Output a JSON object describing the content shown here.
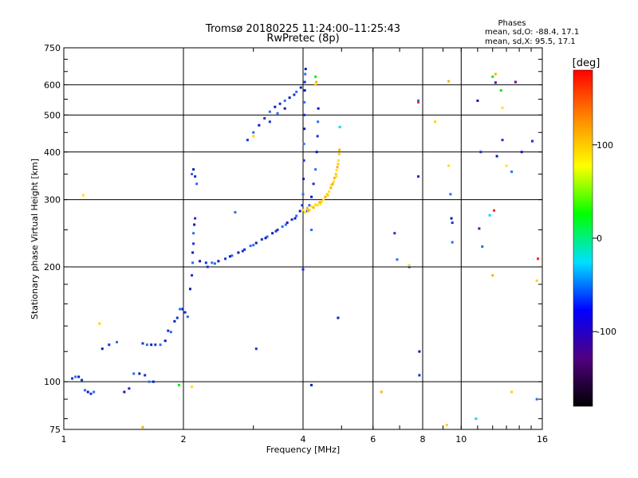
{
  "chart_data": {
    "type": "scatter",
    "title": "Tromsø 20180225 11:24:00–11:25:43",
    "subtitle": "RwPretec (8p)",
    "xlabel": "Frequency [MHz]",
    "ylabel": "Stationary phase Virtual Height [km]",
    "x_scale": "log",
    "y_scale": "log",
    "xlim": [
      1,
      16
    ],
    "ylim": [
      75,
      750
    ],
    "x_ticks": [
      1,
      2,
      4,
      6,
      8,
      10,
      16
    ],
    "x_tick_labels": [
      "1",
      "2",
      "4",
      "6",
      "8",
      "10",
      "16"
    ],
    "y_ticks": [
      75,
      100,
      200,
      300,
      400,
      500,
      600,
      750
    ],
    "y_tick_labels": [
      "75",
      "100",
      "200",
      "300",
      "400",
      "500",
      "600",
      "750"
    ],
    "grid": true,
    "phases_box": {
      "heading": "Phases",
      "line_o": "mean, sd,O: -88.4, 17.1",
      "line_x": "mean, sd,X:  95.5, 17.1"
    },
    "colorbar": {
      "label": "[deg]",
      "range": [
        -180,
        180
      ],
      "ticks": [
        100,
        0,
        -100
      ],
      "tick_labels": [
        "100",
        "0",
        "-100"
      ],
      "colors": [
        "#ff0000",
        "#ff8800",
        "#ffff00",
        "#00ff00",
        "#00e0ff",
        "#0000ff",
        "#500080",
        "#000000"
      ]
    },
    "series": [
      {
        "colors": [
          "#1a2fd0",
          "#2a6cf0",
          "#0a1ab8"
        ],
        "points": [
          [
            1.05,
            102
          ],
          [
            1.07,
            103
          ],
          [
            1.09,
            103
          ],
          [
            1.11,
            101
          ],
          [
            1.13,
            95
          ],
          [
            1.15,
            94
          ],
          [
            1.17,
            93
          ],
          [
            1.19,
            94
          ],
          [
            1.25,
            122
          ],
          [
            1.3,
            125
          ],
          [
            1.36,
            127
          ],
          [
            1.42,
            94
          ],
          [
            1.46,
            96
          ],
          [
            1.5,
            105
          ],
          [
            1.55,
            105
          ],
          [
            1.6,
            104
          ],
          [
            1.64,
            100
          ],
          [
            1.68,
            100
          ],
          [
            1.58,
            126
          ],
          [
            1.62,
            125
          ],
          [
            1.66,
            125
          ],
          [
            1.7,
            125
          ],
          [
            1.75,
            125
          ],
          [
            1.8,
            128
          ],
          [
            1.83,
            136
          ],
          [
            1.86,
            135
          ],
          [
            1.9,
            144
          ],
          [
            1.93,
            147
          ],
          [
            1.96,
            155
          ],
          [
            1.99,
            155
          ],
          [
            2.02,
            152
          ],
          [
            2.05,
            148
          ],
          [
            2.08,
            175
          ],
          [
            2.1,
            190
          ],
          [
            2.11,
            205
          ],
          [
            2.11,
            218
          ],
          [
            2.12,
            230
          ],
          [
            2.12,
            245
          ],
          [
            2.13,
            258
          ],
          [
            2.14,
            268
          ],
          [
            2.1,
            350
          ],
          [
            2.12,
            360
          ],
          [
            2.14,
            345
          ],
          [
            2.16,
            330
          ],
          [
            2.2,
            207
          ],
          [
            2.28,
            205
          ],
          [
            2.36,
            205
          ],
          [
            2.45,
            207
          ],
          [
            2.55,
            210
          ],
          [
            2.65,
            214
          ],
          [
            2.75,
            218
          ],
          [
            2.85,
            222
          ],
          [
            2.95,
            227
          ],
          [
            3.05,
            231
          ],
          [
            3.15,
            236
          ],
          [
            3.25,
            240
          ],
          [
            3.35,
            245
          ],
          [
            3.45,
            250
          ],
          [
            3.55,
            255
          ],
          [
            3.65,
            261
          ],
          [
            3.75,
            266
          ],
          [
            3.85,
            272
          ],
          [
            3.93,
            280
          ],
          [
            3.98,
            290
          ],
          [
            4.0,
            310
          ],
          [
            4.01,
            340
          ],
          [
            4.02,
            380
          ],
          [
            4.02,
            420
          ],
          [
            4.03,
            460
          ],
          [
            4.03,
            500
          ],
          [
            4.03,
            540
          ],
          [
            4.04,
            580
          ],
          [
            4.04,
            610
          ],
          [
            4.05,
            640
          ],
          [
            4.06,
            660
          ],
          [
            4.1,
            280
          ],
          [
            4.15,
            290
          ],
          [
            4.2,
            305
          ],
          [
            4.25,
            330
          ],
          [
            4.3,
            360
          ],
          [
            4.33,
            400
          ],
          [
            4.35,
            440
          ],
          [
            4.36,
            480
          ],
          [
            4.37,
            520
          ],
          [
            2.9,
            430
          ],
          [
            3.0,
            450
          ],
          [
            3.1,
            470
          ],
          [
            3.2,
            490
          ],
          [
            3.3,
            510
          ],
          [
            3.4,
            525
          ],
          [
            3.5,
            535
          ],
          [
            3.6,
            545
          ],
          [
            3.7,
            555
          ],
          [
            3.8,
            565
          ],
          [
            3.85,
            575
          ],
          [
            3.95,
            590
          ],
          [
            3.3,
            480
          ],
          [
            3.45,
            505
          ],
          [
            3.6,
            520
          ],
          [
            2.3,
            200
          ],
          [
            2.4,
            204
          ],
          [
            2.62,
            213
          ],
          [
            2.82,
            220
          ],
          [
            3.0,
            228
          ],
          [
            3.22,
            238
          ],
          [
            3.42,
            248
          ],
          [
            3.62,
            258
          ],
          [
            3.82,
            268
          ],
          [
            4.0,
            197
          ],
          [
            4.2,
            250
          ],
          [
            4.9,
            147
          ],
          [
            3.05,
            122
          ],
          [
            2.7,
            278
          ],
          [
            4.2,
            98
          ],
          [
            6.8,
            245
          ],
          [
            6.9,
            209
          ],
          [
            7.4,
            200
          ],
          [
            7.8,
            345
          ],
          [
            7.8,
            545
          ],
          [
            7.85,
            120
          ],
          [
            7.85,
            104
          ],
          [
            9.4,
            310
          ],
          [
            9.45,
            268
          ],
          [
            9.5,
            261
          ],
          [
            9.5,
            232
          ],
          [
            11.0,
            545
          ],
          [
            11.2,
            400
          ],
          [
            11.3,
            226
          ],
          [
            12.3,
            390
          ],
          [
            12.7,
            430
          ],
          [
            13.4,
            355
          ],
          [
            14.2,
            400
          ],
          [
            15.1,
            427
          ],
          [
            15.5,
            90
          ]
        ]
      },
      {
        "colors": [
          "#ffd000",
          "#ffb000",
          "#ffe020"
        ],
        "points": [
          [
            4.0,
            282
          ],
          [
            4.1,
            285
          ],
          [
            4.2,
            288
          ],
          [
            4.3,
            291
          ],
          [
            4.4,
            295
          ],
          [
            4.5,
            300
          ],
          [
            4.6,
            310
          ],
          [
            4.7,
            322
          ],
          [
            4.78,
            335
          ],
          [
            4.84,
            350
          ],
          [
            4.88,
            365
          ],
          [
            4.91,
            380
          ],
          [
            4.93,
            395
          ],
          [
            4.94,
            405
          ],
          [
            4.05,
            278
          ],
          [
            4.15,
            282
          ],
          [
            4.25,
            286
          ],
          [
            4.35,
            290
          ],
          [
            4.45,
            296
          ],
          [
            4.55,
            305
          ],
          [
            4.65,
            315
          ],
          [
            4.72,
            328
          ],
          [
            4.8,
            342
          ],
          [
            4.86,
            358
          ],
          [
            4.9,
            372
          ],
          [
            4.12,
            280
          ],
          [
            4.42,
            292
          ],
          [
            4.62,
            308
          ],
          [
            4.75,
            330
          ],
          [
            4.85,
            345
          ],
          [
            4.3,
            600
          ],
          [
            4.32,
            610
          ],
          [
            1.12,
            308
          ],
          [
            1.23,
            142
          ],
          [
            1.58,
            76
          ],
          [
            2.1,
            97
          ],
          [
            3.0,
            440
          ],
          [
            6.3,
            94
          ],
          [
            7.4,
            202
          ],
          [
            8.6,
            480
          ],
          [
            9.3,
            613
          ],
          [
            9.3,
            368
          ],
          [
            9.2,
            77
          ],
          [
            12.2,
            640
          ],
          [
            12.7,
            522
          ],
          [
            13.4,
            94
          ],
          [
            12.0,
            190
          ],
          [
            13.0,
            368
          ],
          [
            15.5,
            184
          ]
        ]
      },
      {
        "colors": [
          "#00ee00",
          "#00d8ff",
          "#ff2020",
          "#6a00a0"
        ],
        "points": [
          [
            4.3,
            630
          ],
          [
            4.95,
            465
          ],
          [
            7.8,
            540
          ],
          [
            13.7,
            610
          ],
          [
            12.0,
            630
          ],
          [
            10.9,
            80
          ],
          [
            15.6,
            210
          ],
          [
            12.2,
            608
          ],
          [
            12.6,
            580
          ],
          [
            11.8,
            273
          ],
          [
            12.1,
            281
          ],
          [
            11.1,
            252
          ],
          [
            1.95,
            98
          ]
        ]
      }
    ]
  }
}
